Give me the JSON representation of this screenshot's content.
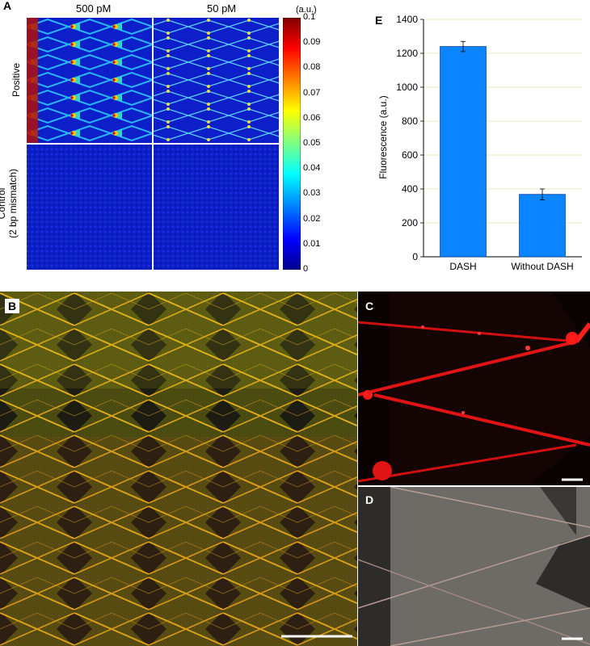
{
  "panel_a": {
    "letter": "A",
    "columns": [
      "500 pM",
      "50 pM"
    ],
    "rows": [
      "Positive",
      "Control",
      "(2 bp mismatch)"
    ],
    "colorbar_unit": "(a.u.)",
    "colorbar_ticks": [
      "0.1",
      "0.09",
      "0.08",
      "0.07",
      "0.06",
      "0.05",
      "0.04",
      "0.03",
      "0.02",
      "0.01",
      "0"
    ]
  },
  "panel_b": {
    "letter": "B"
  },
  "panel_c": {
    "letter": "C"
  },
  "panel_d": {
    "letter": "D"
  },
  "panel_e": {
    "letter": "E"
  },
  "colors": {
    "bar": "#0a84ff",
    "heatmap_bg": "#0d1fc8",
    "merge_bg": "#4a4a10",
    "red_channel": "#ff1a1a",
    "gray_bg": "#6e6a66"
  },
  "chart_data": {
    "type": "bar",
    "categories": [
      "DASH",
      "Without DASH"
    ],
    "values": [
      1240,
      368
    ],
    "errors": [
      30,
      32
    ],
    "xlabel": "",
    "ylabel": "Fluorescence (a.u.)",
    "ylim": [
      0,
      1400
    ],
    "yticks": [
      0,
      200,
      400,
      600,
      800,
      1000,
      1200,
      1400
    ],
    "grid": true
  }
}
